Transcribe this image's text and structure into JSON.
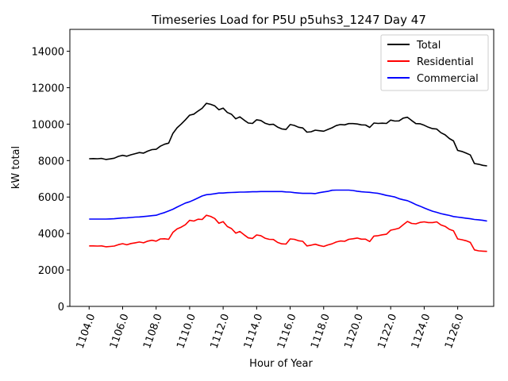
{
  "chart_data": {
    "type": "line",
    "title": "Timeseries Load for P5U p5uhs3_1247  Day 47",
    "xlabel": "Hour of Year",
    "ylabel": "kW total",
    "xlim": [
      1102.85,
      1128.15
    ],
    "ylim": [
      0,
      15200
    ],
    "x_ticks": [
      1104,
      1106,
      1108,
      1110,
      1112,
      1114,
      1116,
      1118,
      1120,
      1122,
      1124,
      1126
    ],
    "x_tick_labels": [
      "1104.0",
      "1106.0",
      "1108.0",
      "1110.0",
      "1112.0",
      "1114.0",
      "1116.0",
      "1118.0",
      "1120.0",
      "1122.0",
      "1124.0",
      "1126.0"
    ],
    "y_ticks": [
      0,
      2000,
      4000,
      6000,
      8000,
      10000,
      12000,
      14000
    ],
    "y_tick_labels": [
      "0",
      "2000",
      "4000",
      "6000",
      "8000",
      "10000",
      "12000",
      "14000"
    ],
    "legend_position": "top-right",
    "x": [
      1104.0,
      1104.25,
      1104.5,
      1104.75,
      1105.0,
      1105.25,
      1105.5,
      1105.75,
      1106.0,
      1106.25,
      1106.5,
      1106.75,
      1107.0,
      1107.25,
      1107.5,
      1107.75,
      1108.0,
      1108.25,
      1108.5,
      1108.75,
      1109.0,
      1109.25,
      1109.5,
      1109.75,
      1110.0,
      1110.25,
      1110.5,
      1110.75,
      1111.0,
      1111.25,
      1111.5,
      1111.75,
      1112.0,
      1112.25,
      1112.5,
      1112.75,
      1113.0,
      1113.25,
      1113.5,
      1113.75,
      1114.0,
      1114.25,
      1114.5,
      1114.75,
      1115.0,
      1115.25,
      1115.5,
      1115.75,
      1116.0,
      1116.25,
      1116.5,
      1116.75,
      1117.0,
      1117.25,
      1117.5,
      1117.75,
      1118.0,
      1118.25,
      1118.5,
      1118.75,
      1119.0,
      1119.25,
      1119.5,
      1119.75,
      1120.0,
      1120.25,
      1120.5,
      1120.75,
      1121.0,
      1121.25,
      1121.5,
      1121.75,
      1122.0,
      1122.25,
      1122.5,
      1122.75,
      1123.0,
      1123.25,
      1123.5,
      1123.75,
      1124.0,
      1124.25,
      1124.5,
      1124.75,
      1125.0,
      1125.25,
      1125.5,
      1125.75,
      1126.0,
      1126.25,
      1126.5,
      1126.75,
      1127.0,
      1127.25,
      1127.5,
      1127.75
    ],
    "series": [
      {
        "name": "Total",
        "color": "#000000",
        "values": [
          8100,
          8110,
          8100,
          8120,
          8060,
          8090,
          8130,
          8230,
          8290,
          8240,
          8320,
          8380,
          8440,
          8410,
          8520,
          8600,
          8620,
          8790,
          8900,
          8960,
          9490,
          9800,
          10010,
          10240,
          10490,
          10550,
          10720,
          10870,
          11140,
          11090,
          11000,
          10790,
          10880,
          10640,
          10540,
          10290,
          10400,
          10220,
          10060,
          10040,
          10240,
          10200,
          10050,
          9980,
          9990,
          9840,
          9740,
          9710,
          9980,
          9930,
          9830,
          9790,
          9560,
          9580,
          9670,
          9640,
          9610,
          9710,
          9800,
          9920,
          9980,
          9960,
          10030,
          10030,
          10010,
          9960,
          9950,
          9820,
          10060,
          10040,
          10050,
          10040,
          10220,
          10170,
          10180,
          10330,
          10380,
          10200,
          10030,
          10020,
          9940,
          9830,
          9750,
          9730,
          9530,
          9410,
          9210,
          9080,
          8560,
          8500,
          8410,
          8310,
          7840,
          7800,
          7740,
          7710
        ]
      },
      {
        "name": "Residential",
        "color": "#ff0000",
        "values": [
          3320,
          3320,
          3310,
          3320,
          3270,
          3290,
          3310,
          3390,
          3440,
          3380,
          3450,
          3490,
          3530,
          3490,
          3580,
          3630,
          3580,
          3700,
          3710,
          3680,
          4060,
          4250,
          4350,
          4480,
          4720,
          4680,
          4780,
          4770,
          5000,
          4940,
          4820,
          4560,
          4650,
          4380,
          4270,
          4020,
          4110,
          3930,
          3760,
          3730,
          3920,
          3880,
          3740,
          3680,
          3670,
          3510,
          3430,
          3420,
          3700,
          3680,
          3600,
          3570,
          3320,
          3360,
          3410,
          3340,
          3290,
          3370,
          3430,
          3530,
          3590,
          3570,
          3680,
          3710,
          3750,
          3690,
          3690,
          3560,
          3860,
          3880,
          3930,
          3960,
          4180,
          4230,
          4290,
          4480,
          4660,
          4550,
          4530,
          4610,
          4640,
          4600,
          4600,
          4640,
          4470,
          4390,
          4230,
          4150,
          3700,
          3660,
          3600,
          3510,
          3100,
          3050,
          3030,
          3020
        ]
      },
      {
        "name": "Commercial",
        "color": "#0000ff",
        "values": [
          4790,
          4790,
          4790,
          4790,
          4790,
          4800,
          4810,
          4830,
          4850,
          4860,
          4880,
          4900,
          4910,
          4930,
          4950,
          4980,
          5000,
          5080,
          5150,
          5240,
          5330,
          5450,
          5560,
          5670,
          5740,
          5840,
          5950,
          6060,
          6130,
          6150,
          6180,
          6220,
          6220,
          6240,
          6250,
          6260,
          6270,
          6270,
          6280,
          6290,
          6290,
          6300,
          6300,
          6300,
          6300,
          6300,
          6300,
          6280,
          6270,
          6240,
          6220,
          6200,
          6200,
          6200,
          6190,
          6240,
          6280,
          6310,
          6370,
          6380,
          6380,
          6380,
          6380,
          6360,
          6320,
          6290,
          6270,
          6260,
          6230,
          6200,
          6150,
          6090,
          6050,
          6000,
          5910,
          5850,
          5800,
          5700,
          5590,
          5500,
          5400,
          5310,
          5220,
          5160,
          5090,
          5040,
          4990,
          4930,
          4900,
          4870,
          4840,
          4810,
          4770,
          4750,
          4720,
          4680
        ]
      }
    ]
  }
}
